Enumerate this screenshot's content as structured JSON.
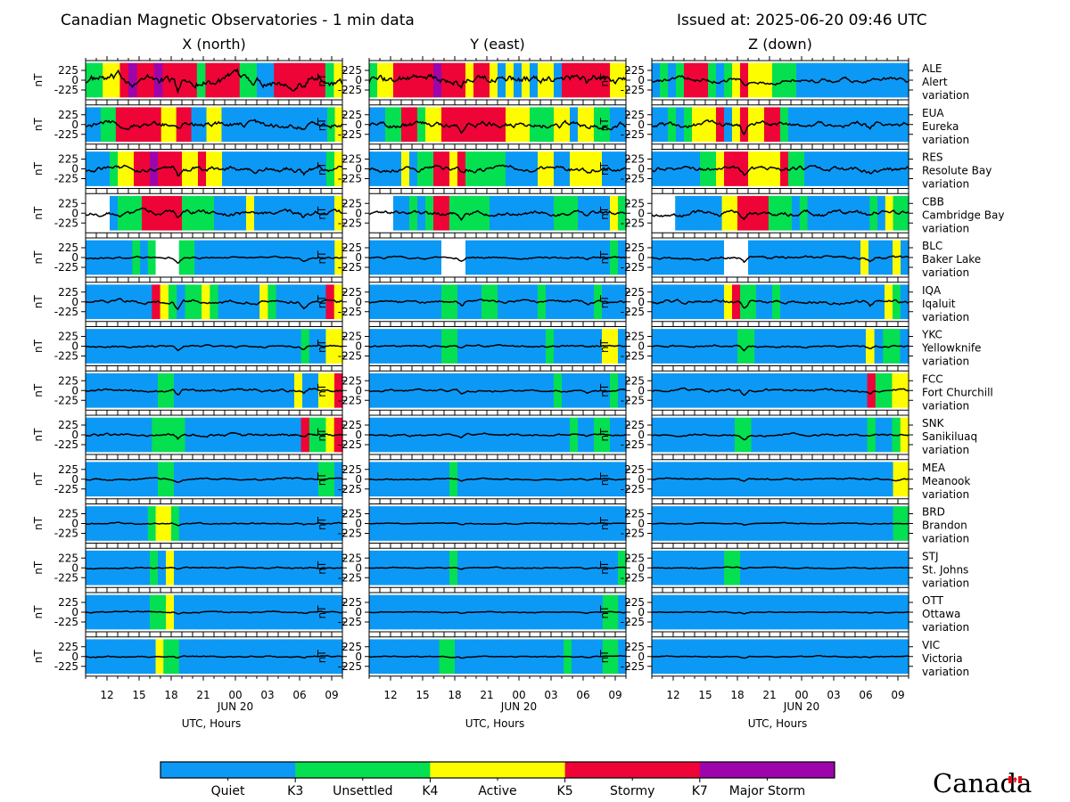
{
  "header": {
    "title": "Canadian Magnetic Observatories - 1 min data",
    "issued": "Issued at: 2025-06-20 09:46 UTC"
  },
  "wordmark": "Canada",
  "colors": {
    "quiet": "#0c99f6",
    "unsettled": "#04e050",
    "active": "#fdfd00",
    "stormy": "#ee0437",
    "major": "#9d05ac",
    "nodata": "#ffffff"
  },
  "chart_data": {
    "type": "line",
    "columns": [
      {
        "key": "x",
        "title": "X (north)"
      },
      {
        "key": "y",
        "title": "Y (east)"
      },
      {
        "key": "z",
        "title": "Z (down)"
      }
    ],
    "ylabel": "nT",
    "yticks": [
      225,
      0,
      -225
    ],
    "ylim": [
      -450,
      450
    ],
    "xlabel": "UTC, Hours",
    "date_label": "JUN 20",
    "date_label_position_hour": 24,
    "xlim_hours_since_start": [
      0,
      24
    ],
    "xlim_utc": [
      "2025-06-19 10:00",
      "2025-06-20 10:00"
    ],
    "xtick_labels": [
      {
        "hour": 2,
        "label": "12"
      },
      {
        "hour": 5,
        "label": "15"
      },
      {
        "hour": 8,
        "label": "18"
      },
      {
        "hour": 11,
        "label": "21"
      },
      {
        "hour": 14,
        "label": "00"
      },
      {
        "hour": 17,
        "label": "03"
      },
      {
        "hour": 20,
        "label": "06"
      },
      {
        "hour": 23,
        "label": "09"
      }
    ],
    "activity_legend": {
      "levels": [
        {
          "key": "quiet",
          "label": "Quiet"
        },
        {
          "key": "unsettled",
          "label": "Unsettled"
        },
        {
          "key": "active",
          "label": "Active"
        },
        {
          "key": "stormy",
          "label": "Stormy"
        },
        {
          "key": "major",
          "label": "Major Storm"
        }
      ],
      "thresholds": [
        "K3",
        "K4",
        "K5",
        "K7"
      ]
    },
    "stations": [
      {
        "code": "ALE",
        "name": "Alert",
        "suffix": "variation",
        "x": "UUAASMSSMSSSSUSSSSUUQQSSSSSSUA",
        "y": "UAASSSSSMSSSASSAQAQAQAAQSSSSSSAA",
        "z": "QUQUSSSUQUASAAAUUUQQQQQQQQQQQQQQ",
        "amp": [
          150,
          130,
          70
        ],
        "spk": [
          -260,
          -230,
          -80
        ]
      },
      {
        "code": "EUA",
        "name": "Eureka",
        "suffix": "variation",
        "x": "QQUUSSSSSSAASSQQAAQQQQQQQQQQQQQQUA",
        "y": "QQUUSSUAASSSSSSSSAAAUUUAAQAAUUQQ",
        "z": "QQUQUAAASQASAASSUQQQQQQQQQQQQQQQ",
        "amp": [
          90,
          90,
          70
        ],
        "spk": [
          -150,
          -120,
          -220
        ]
      },
      {
        "code": "RES",
        "name": "Resolute Bay",
        "suffix": "variation",
        "x": "QQQUAASSMSSSAASAAQQQQQQQQQQQQQUA",
        "y": "QQQQAQUUSSASUUUUUQQQQAAQQAAAAQQQ",
        "z": "QQQQQQUUASSSAAAASUUQQQQQQQQQQQQQ",
        "amp": [
          80,
          70,
          70
        ],
        "spk": [
          -220,
          -100,
          -140
        ]
      },
      {
        "code": "CBB",
        "name": "Cambridge Bay",
        "suffix": "variation",
        "x": "NNNQUUUSSSSSUUUUQQQQAQQQQQQQQQQA",
        "y": "NNNQQUQUSSUUUUUQQQQQQQQUUUQQQQAU",
        "z": "NNNQQQQQQAASSSSUUUQUQQQQQQQQUQAUU",
        "amp": [
          70,
          60,
          70
        ],
        "spk": [
          -130,
          -120,
          -160
        ]
      },
      {
        "code": "BLC",
        "name": "Baker Lake",
        "suffix": "variation",
        "x": "QQQQQQUQUNNNUUQQQQQQQQQQQQQQQQQQA",
        "y": "QQQQQQQQQNNNQQQQQQQQQQQQQQQQQQUQ",
        "z": "QQQQQQQQQNNNQQQQQQQQQQQQQQAQQQAQ",
        "amp": [
          30,
          30,
          40
        ],
        "spk": [
          -100,
          -80,
          -120
        ]
      },
      {
        "code": "IQA",
        "name": "Iqaluit",
        "suffix": "variation",
        "x": "QQQQQQQQSAUQUUAUQQQQQAUQQQQQQSA",
        "y": "QQQQQQQQQUUQQQUUQQQQQUQQQQQQUQQQ",
        "z": "QQQQQQQQQASUUQQUQQQQQQQQQQQQQAUQ",
        "amp": [
          50,
          40,
          50
        ],
        "spk": [
          -160,
          -100,
          -150
        ]
      },
      {
        "code": "YKC",
        "name": "Yellowknife",
        "suffix": "variation",
        "x": "QQQQQQQQQQQQQQQQQQQQQQQQQQUQQAA",
        "y": "QQQQQQQQQUUQQQQQQQQQQQUQQQQQQAAQ",
        "z": "QQQQQQQQQQUUQQQQQQQQQQQQQAQUUQ",
        "amp": [
          30,
          30,
          30
        ],
        "spk": [
          -100,
          -60,
          -100
        ]
      },
      {
        "code": "FCC",
        "name": "Fort Churchill",
        "suffix": "variation",
        "x": "QQQQQQQQQUUQQQQQQQQQQQQQQQAQQAAS",
        "y": "QQQQQQQQQQQQQQQQQQQQQQQUQQQQQQUQ",
        "z": "QQQQQQQQQQQQQQQQQQQQQQQQQQSUUAA",
        "amp": [
          40,
          30,
          40
        ],
        "spk": [
          -120,
          -70,
          -120
        ]
      },
      {
        "code": "SNK",
        "name": "Sanikiluaq",
        "suffix": "variation",
        "x": "QQQQQQQQUUUUQQQQQQQQQQQQQQSUUAS",
        "y": "QQQQQQQQQQQQQQQQQQQQQQQQQUQQUUQQ",
        "z": "QQQQQQQQQQUUQQQQQQQQQQQQQQUQQUA",
        "amp": [
          40,
          30,
          30
        ],
        "spk": [
          -120,
          -60,
          -80
        ]
      },
      {
        "code": "MEA",
        "name": "Meanook",
        "suffix": "variation",
        "x": "QQQQQQQQQUUQQQQQQQQQQQQQQQQQQUUQ",
        "y": "QQQQQQQQQQUQQQQQQQQQQQQQQQQQQQQQ",
        "z": "QQQQQQQQQQQQQQQQQQQQQQQQQQQQQQQAA",
        "amp": [
          25,
          20,
          25
        ],
        "spk": [
          -60,
          -40,
          -60
        ]
      },
      {
        "code": "BRD",
        "name": "Brandon",
        "suffix": "variation",
        "x": "QQQQQQQQUAAUQQQQQQQQQQQQQQQQQQQQQ",
        "y": "QQQQQQQQQQQQQQQQQQQQQQQQQQQQQQQQ",
        "z": "QQQQQQQQQQQQQQQQQQQQQQQQQQQQQQQUU",
        "amp": [
          20,
          15,
          15
        ],
        "spk": [
          -40,
          -30,
          -30
        ]
      },
      {
        "code": "STJ",
        "name": "St. Johns",
        "suffix": "variation",
        "x": "QQQQQQQQUQAQQQQQQQQQQQQQQQQQQQQQ",
        "y": "QQQQQQQQQQUQQQQQQQQQQQQQQQQQQQQU",
        "z": "QQQQQQQQQUUQQQQQQQQQQQQQQQQQQQQQ",
        "amp": [
          20,
          15,
          15
        ],
        "spk": [
          -40,
          -30,
          -30
        ]
      },
      {
        "code": "OTT",
        "name": "Ottawa",
        "suffix": "variation",
        "x": "QQQQQQQQUUAQQQQQQQQQQQQQQQQQQQQQ",
        "y": "QQQQQQQQQQQQQQQQQQQQQQQQQQQQQQUUQ",
        "z": "QQQQQQQQQQQQQQQQQQQQQQQQQQQQQQQQ",
        "amp": [
          20,
          15,
          15
        ],
        "spk": [
          -40,
          -30,
          -30
        ]
      },
      {
        "code": "VIC",
        "name": "Victoria",
        "suffix": "variation",
        "x": "QQQQQQQQQAUUQQQQQQQQQQQQQQQQQQQQQ",
        "y": "QQQQQQQQQUUQQQQQQQQQQQQQQUQQQQUUQ",
        "z": "QQQQQQQQQQQQQQQQQQQQQQQQQQQQQQQQ",
        "amp": [
          20,
          15,
          15
        ],
        "spk": [
          -40,
          -30,
          -30
        ]
      }
    ]
  }
}
